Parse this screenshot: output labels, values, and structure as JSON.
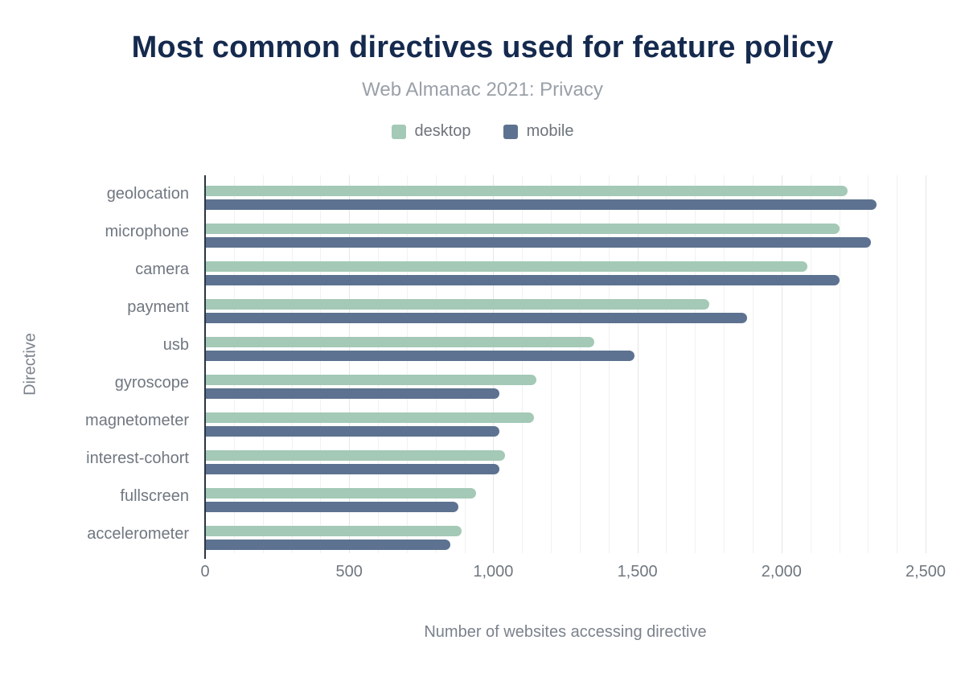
{
  "chart_data": {
    "type": "bar",
    "orientation": "horizontal",
    "title": "Most common directives used for feature policy",
    "subtitle": "Web Almanac 2021: Privacy",
    "categories": [
      "geolocation",
      "microphone",
      "camera",
      "payment",
      "usb",
      "gyroscope",
      "magnetometer",
      "interest-cohort",
      "fullscreen",
      "accelerometer"
    ],
    "series": [
      {
        "name": "desktop",
        "color": "#a4c9b6",
        "values": [
          2230,
          2200,
          2090,
          1750,
          1350,
          1150,
          1140,
          1040,
          940,
          890
        ]
      },
      {
        "name": "mobile",
        "color": "#5d7290",
        "values": [
          2330,
          2310,
          2200,
          1880,
          1490,
          1020,
          1020,
          1020,
          880,
          850
        ]
      }
    ],
    "xlabel": "Number of websites accessing directive",
    "ylabel": "Directive",
    "xlim": [
      0,
      2500
    ],
    "xticks": [
      0,
      500,
      1000,
      1500,
      2000,
      2500
    ],
    "xtick_labels": [
      "0",
      "500",
      "1,000",
      "1,500",
      "2,000",
      "2,500"
    ],
    "grid": "vertical, minor every 100, major every 500",
    "legend_position": "top-center",
    "colors": {
      "title": "#152a4e",
      "subtitle": "#9aa0a8",
      "axis_text": "#707780",
      "axis_line": "#2b3442",
      "gridline": "#f1f1f1"
    }
  }
}
